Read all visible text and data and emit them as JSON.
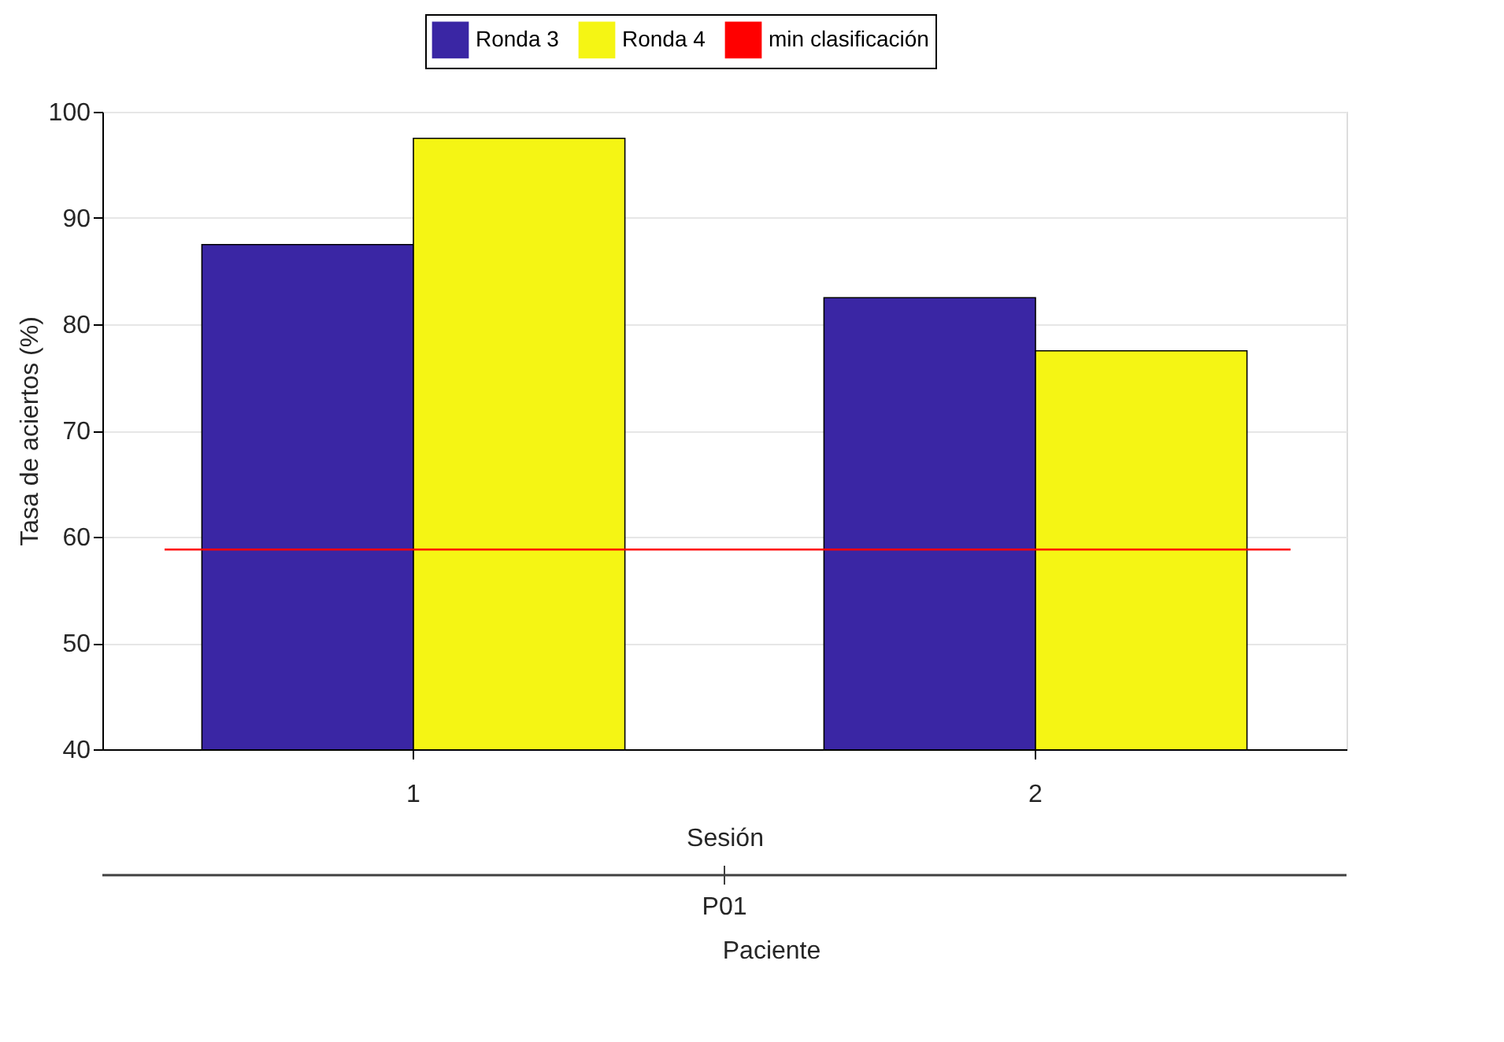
{
  "chart_data": {
    "type": "bar",
    "xlabel": "Sesión",
    "ylabel": "Tasa de aciertos (%)",
    "categories": [
      "1",
      "2"
    ],
    "series": [
      {
        "name": "Ronda 3",
        "color": "#3a26a4",
        "values": [
          87.5,
          82.5
        ]
      },
      {
        "name": "Ronda 4",
        "color": "#f5f514",
        "values": [
          97.5,
          77.5
        ]
      }
    ],
    "ref_lines": [
      {
        "axis": "y",
        "value": 58.8,
        "label": "min clasificación",
        "color": "#ff0000",
        "line_style": "solid"
      }
    ],
    "ylim": [
      40,
      100
    ],
    "yticks": [
      40,
      50,
      60,
      70,
      80,
      90,
      100
    ],
    "grid": "y",
    "legend": "top",
    "annotations": [
      "P01",
      "Paciente"
    ]
  }
}
